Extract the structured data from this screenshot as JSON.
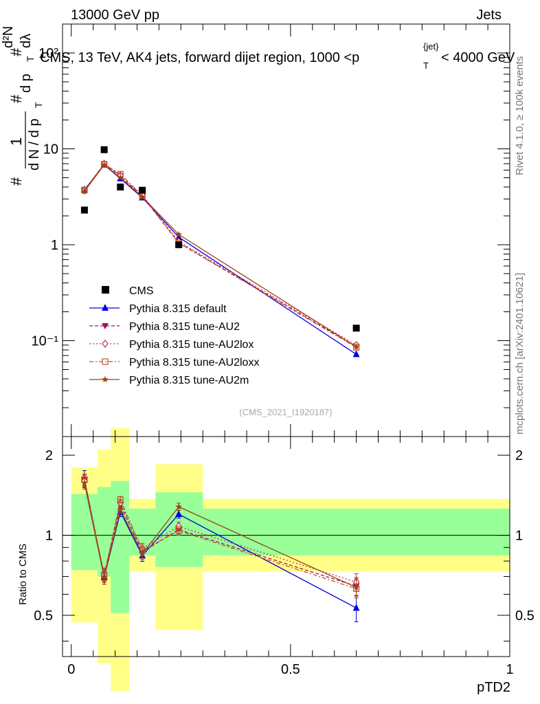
{
  "header": {
    "energy": "13000 GeV pp",
    "category": "Jets",
    "rivet": "Rivet 4.1.0, ≥ 100k events",
    "source": "mcplots.cern.ch [arXiv:2401.10621]",
    "analysis": "(CMS_2021_I1920187)"
  },
  "chart_data": {
    "type": "line",
    "title": "CMS, 13 TeV, AK4 jets, forward dijet region, 1000 <p_T^{jet}< 4000 GeV",
    "title_text": "CMS, 13 TeV, AK4 jets, forward dijet region, 1000 <p",
    "title_tail": "< 4000 GeV",
    "title_sup": "{jet}",
    "title_sub": "T",
    "ylabel": "1/dN/dp_T dN/dp_T dλ",
    "ylabel_parts": {
      "hash1": "#",
      "one": "1",
      "denom": "d N / d p",
      "hash2": "#",
      "top": "d p",
      "d2n": "d²N",
      "hash3": "#",
      "dl": "dλ",
      "t": "T"
    },
    "xlabel": "pTD2",
    "ratio_ylabel": "Ratio to CMS",
    "xlim": [
      -0.02,
      1.0
    ],
    "ylim_main": [
      0.01,
      200
    ],
    "ylim_ratio": [
      0.35,
      2.35
    ],
    "x_ticks": [
      "0",
      "0.5",
      "1"
    ],
    "y_ticks_main": [
      "10⁻¹",
      "1",
      "10",
      "10²"
    ],
    "y_ticks_ratio": [
      "0.5",
      "1",
      "2"
    ],
    "x": [
      0.03,
      0.075,
      0.112,
      0.162,
      0.245,
      0.65
    ],
    "data": {
      "name": "CMS",
      "values": [
        2.3,
        9.8,
        4.0,
        3.7,
        1.0,
        0.135
      ]
    },
    "bin_edges": [
      0.0,
      0.06,
      0.09,
      0.132,
      0.192,
      0.3,
      1.0
    ],
    "band_green": [
      [
        0.74,
        1.43
      ],
      [
        0.7,
        1.52
      ],
      [
        0.51,
        1.6
      ],
      [
        0.84,
        1.26
      ],
      [
        0.76,
        1.45
      ],
      [
        0.84,
        1.26
      ]
    ],
    "band_yellow": [
      [
        0.47,
        1.8
      ],
      [
        0.33,
        2.1
      ],
      [
        0.26,
        2.53
      ],
      [
        0.73,
        1.37
      ],
      [
        0.44,
        1.85
      ],
      [
        0.73,
        1.37
      ]
    ],
    "series": [
      {
        "name": "Pythia 8.315 default",
        "color": "#0000dd",
        "dash": "",
        "marker": "triangle",
        "values": [
          3.75,
          6.8,
          4.9,
          3.1,
          1.2,
          0.072
        ],
        "ratio": [
          1.63,
          0.694,
          1.225,
          0.838,
          1.2,
          0.533
        ],
        "err": [
          0.12,
          0.04,
          0.05,
          0.04,
          0.04,
          0.06
        ]
      },
      {
        "name": "Pythia 8.315 tune-AU2",
        "color": "#a01060",
        "dash": "5,3",
        "marker": "triangle-down",
        "values": [
          3.7,
          6.95,
          5.2,
          3.2,
          1.05,
          0.087
        ],
        "ratio": [
          1.61,
          0.709,
          1.3,
          0.865,
          1.05,
          0.644
        ],
        "err": [
          0.08,
          0.04,
          0.04,
          0.04,
          0.04,
          0.05
        ]
      },
      {
        "name": "Pythia 8.315 tune-AU2lox",
        "color": "#c03050",
        "dash": "2,3",
        "marker": "diamond",
        "values": [
          3.68,
          7.0,
          5.3,
          3.3,
          1.08,
          0.09
        ],
        "ratio": [
          1.6,
          0.714,
          1.325,
          0.892,
          1.08,
          0.667
        ],
        "err": [
          0.08,
          0.04,
          0.04,
          0.04,
          0.04,
          0.05
        ]
      },
      {
        "name": "Pythia 8.315 tune-AU2loxx",
        "color": "#c85020",
        "dash": "6,3,2,3",
        "marker": "square",
        "values": [
          3.72,
          6.9,
          5.45,
          3.25,
          1.04,
          0.085
        ],
        "ratio": [
          1.62,
          0.704,
          1.36,
          0.878,
          1.04,
          0.63
        ],
        "err": [
          0.08,
          0.04,
          0.04,
          0.04,
          0.04,
          0.05
        ]
      },
      {
        "name": "Pythia 8.315 tune-AU2m",
        "color": "#994411",
        "dash": "",
        "marker": "star",
        "values": [
          3.6,
          6.8,
          5.0,
          3.15,
          1.28,
          0.086
        ],
        "ratio": [
          1.57,
          0.694,
          1.25,
          0.851,
          1.28,
          0.637
        ],
        "err": [
          0.08,
          0.04,
          0.04,
          0.04,
          0.04,
          0.05
        ]
      }
    ]
  }
}
